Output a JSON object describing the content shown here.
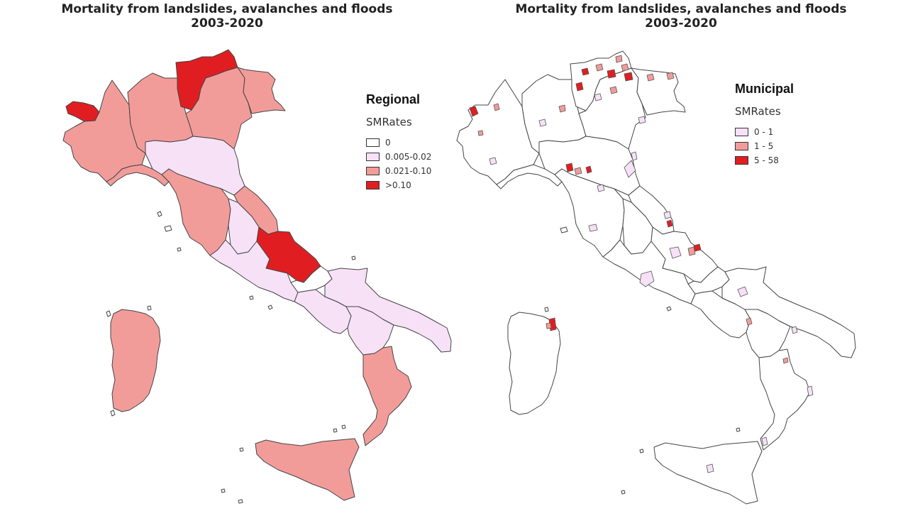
{
  "left": {
    "title_line1": "Mortality from landslides, avalanches and floods",
    "title_line2": "2003-2020",
    "legend": {
      "heading": "Regional",
      "field": "SMRates",
      "items": [
        {
          "label": "0",
          "color": "#ffffff"
        },
        {
          "label": "0.005-0.02",
          "color": "#f7e1f7"
        },
        {
          "label": "0.021-0.10",
          "color": "#f29c9a"
        },
        {
          "label": ">0.10",
          "color": "#e01e22"
        }
      ]
    }
  },
  "right": {
    "title_line1": "Mortality from landslides, avalanches and floods",
    "title_line2": "2003-2020",
    "legend": {
      "heading": "Municipal",
      "field": "SMRates",
      "items": [
        {
          "label": "0 - 1",
          "color": "#f7e1f7"
        },
        {
          "label": "1 - 5",
          "color": "#f29c9a"
        },
        {
          "label": "5 - 58",
          "color": "#e01e22"
        }
      ]
    }
  }
}
